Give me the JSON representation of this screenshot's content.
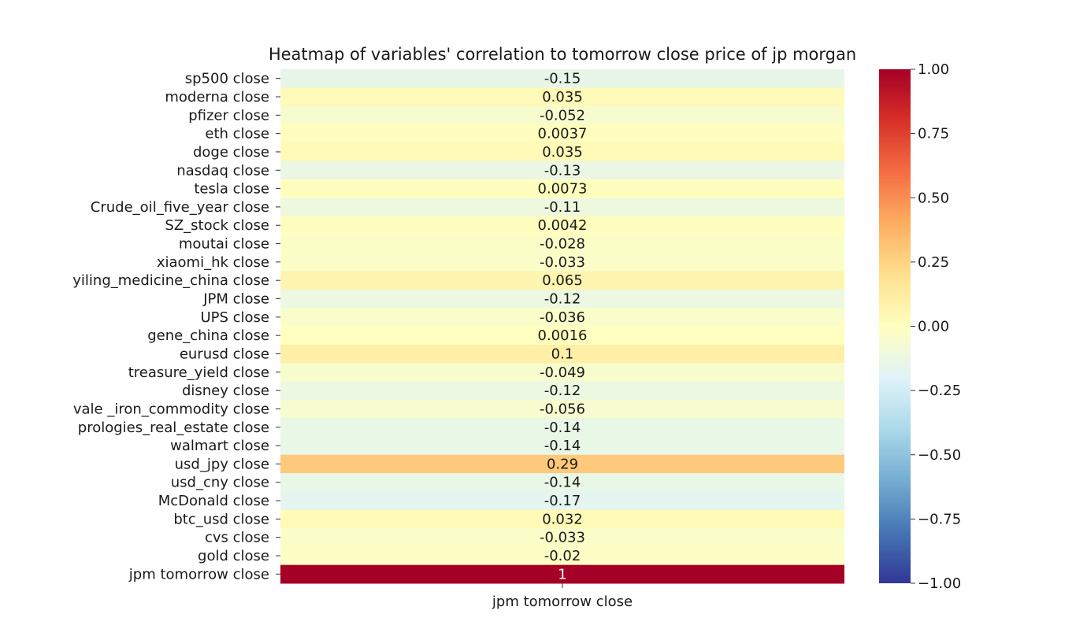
{
  "chart_data": {
    "type": "heatmap",
    "title": "Heatmap of variables' correlation to tomorrow close price of jp morgan",
    "columns": [
      "jpm tomorrow close"
    ],
    "rows": [
      {
        "label": "sp500 close",
        "value": -0.15,
        "text": "-0.15"
      },
      {
        "label": "moderna close",
        "value": 0.035,
        "text": "0.035"
      },
      {
        "label": "pfizer close",
        "value": -0.052,
        "text": "-0.052"
      },
      {
        "label": "eth close",
        "value": 0.0037,
        "text": "0.0037"
      },
      {
        "label": "doge close",
        "value": 0.035,
        "text": "0.035"
      },
      {
        "label": "nasdaq close",
        "value": -0.13,
        "text": "-0.13"
      },
      {
        "label": "tesla close",
        "value": 0.0073,
        "text": "0.0073"
      },
      {
        "label": "Crude_oil_five_year close",
        "value": -0.11,
        "text": "-0.11"
      },
      {
        "label": "SZ_stock close",
        "value": 0.0042,
        "text": "0.0042"
      },
      {
        "label": "moutai close",
        "value": -0.028,
        "text": "-0.028"
      },
      {
        "label": "xiaomi_hk close",
        "value": -0.033,
        "text": "-0.033"
      },
      {
        "label": "yiling_medicine_china close",
        "value": 0.065,
        "text": "0.065"
      },
      {
        "label": "JPM close",
        "value": -0.12,
        "text": "-0.12"
      },
      {
        "label": "UPS close",
        "value": -0.036,
        "text": "-0.036"
      },
      {
        "label": "gene_china close",
        "value": 0.0016,
        "text": "0.0016"
      },
      {
        "label": "eurusd close",
        "value": 0.1,
        "text": "0.1"
      },
      {
        "label": "treasure_yield close",
        "value": -0.049,
        "text": "-0.049"
      },
      {
        "label": "disney close",
        "value": -0.12,
        "text": "-0.12"
      },
      {
        "label": "vale _iron_commodity close",
        "value": -0.056,
        "text": "-0.056"
      },
      {
        "label": "prologies_real_estate close",
        "value": -0.14,
        "text": "-0.14"
      },
      {
        "label": "walmart close",
        "value": -0.14,
        "text": "-0.14"
      },
      {
        "label": "usd_jpy close",
        "value": 0.29,
        "text": "0.29"
      },
      {
        "label": "usd_cny close",
        "value": -0.14,
        "text": "-0.14"
      },
      {
        "label": "McDonald close",
        "value": -0.17,
        "text": "-0.17"
      },
      {
        "label": "btc_usd close",
        "value": 0.032,
        "text": "0.032"
      },
      {
        "label": "cvs close",
        "value": -0.033,
        "text": "-0.033"
      },
      {
        "label": "gold close",
        "value": -0.02,
        "text": "-0.02"
      },
      {
        "label": "jpm tomorrow close",
        "value": 1,
        "text": "1"
      }
    ],
    "colorbar": {
      "colormap": "RdYlBu_r",
      "vmin": -1,
      "vmax": 1,
      "ticks": [
        {
          "value": 1,
          "label": "1.00"
        },
        {
          "value": 0.75,
          "label": "0.75"
        },
        {
          "value": 0.5,
          "label": "0.50"
        },
        {
          "value": 0.25,
          "label": "0.25"
        },
        {
          "value": 0,
          "label": "0.00"
        },
        {
          "value": -0.25,
          "label": "−0.25"
        },
        {
          "value": -0.5,
          "label": "−0.50"
        },
        {
          "value": -0.75,
          "label": "−0.75"
        },
        {
          "value": -1,
          "label": "−1.00"
        }
      ]
    },
    "annotations": true,
    "grid": false
  }
}
